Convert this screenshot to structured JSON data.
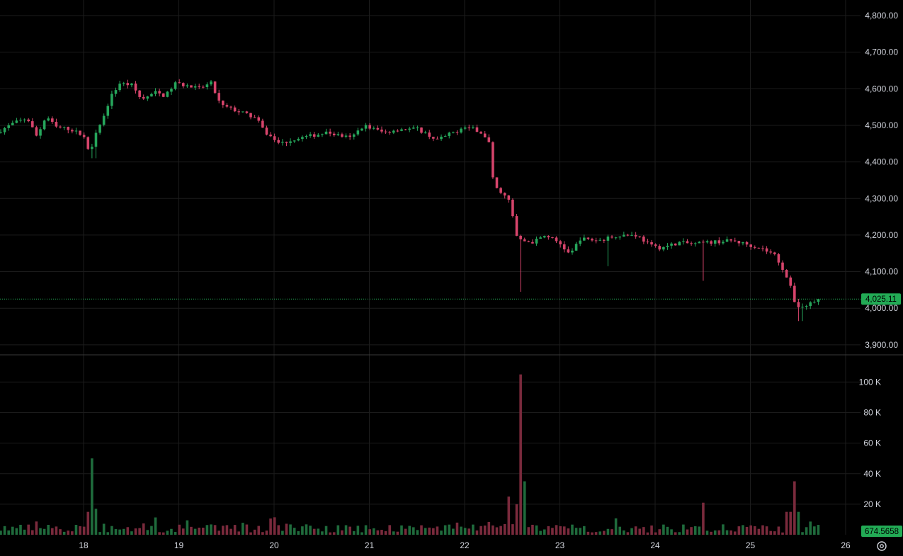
{
  "colors": {
    "background": "#000000",
    "grid": "#1c1c1c",
    "up": "#26a65b",
    "down": "#d6446b",
    "up_volume": "#1f6b3c",
    "down_volume": "#7a2a3c",
    "last_price_badge": "#22ab55",
    "axis_text": "#d1d4dc",
    "separator": "#3a3a3a"
  },
  "icons": {
    "settings": "gear-icon"
  },
  "chart_data": [
    {
      "type": "candlestick",
      "pane": "price",
      "x_ticks": [
        "18",
        "19",
        "20",
        "21",
        "22",
        "23",
        "24",
        "25",
        "26"
      ],
      "x_range": [
        17.13,
        26.73
      ],
      "ylim": [
        3880,
        4840
      ],
      "y_ticks": [
        "4,800.00",
        "4,700.00",
        "4,600.00",
        "4,500.00",
        "4,400.00",
        "4,300.00",
        "4,200.00",
        "4,100.00",
        "4,000.00",
        "3,900.00"
      ],
      "last_price": 4025.11,
      "last_price_label": "4,025.11",
      "keypoints": [
        [
          17.13,
          4480
        ],
        [
          17.3,
          4505
        ],
        [
          17.45,
          4520
        ],
        [
          17.55,
          4470
        ],
        [
          17.65,
          4525
        ],
        [
          17.75,
          4495
        ],
        [
          17.9,
          4490
        ],
        [
          18.05,
          4470
        ],
        [
          18.1,
          4420
        ],
        [
          18.18,
          4490
        ],
        [
          18.25,
          4520
        ],
        [
          18.32,
          4575
        ],
        [
          18.42,
          4615
        ],
        [
          18.55,
          4610
        ],
        [
          18.65,
          4570
        ],
        [
          18.8,
          4590
        ],
        [
          18.9,
          4580
        ],
        [
          19.0,
          4615
        ],
        [
          19.1,
          4610
        ],
        [
          19.25,
          4600
        ],
        [
          19.38,
          4615
        ],
        [
          19.48,
          4555
        ],
        [
          19.7,
          4535
        ],
        [
          19.85,
          4520
        ],
        [
          19.95,
          4480
        ],
        [
          20.1,
          4450
        ],
        [
          20.3,
          4465
        ],
        [
          20.6,
          4480
        ],
        [
          20.85,
          4465
        ],
        [
          20.98,
          4500
        ],
        [
          21.2,
          4480
        ],
        [
          21.35,
          4490
        ],
        [
          21.55,
          4490
        ],
        [
          21.75,
          4460
        ],
        [
          22.05,
          4495
        ],
        [
          22.2,
          4485
        ],
        [
          22.3,
          4450
        ],
        [
          22.35,
          4330
        ],
        [
          22.42,
          4320
        ],
        [
          22.52,
          4290
        ],
        [
          22.58,
          4200
        ],
        [
          22.63,
          4185
        ],
        [
          22.75,
          4180
        ],
        [
          22.9,
          4200
        ],
        [
          23.05,
          4175
        ],
        [
          23.15,
          4145
        ],
        [
          23.25,
          4190
        ],
        [
          23.45,
          4185
        ],
        [
          23.65,
          4200
        ],
        [
          23.85,
          4200
        ],
        [
          24.0,
          4170
        ],
        [
          24.1,
          4165
        ],
        [
          24.3,
          4180
        ],
        [
          24.45,
          4175
        ],
        [
          24.6,
          4180
        ],
        [
          24.85,
          4185
        ],
        [
          25.0,
          4175
        ],
        [
          25.15,
          4165
        ],
        [
          25.3,
          4145
        ],
        [
          25.4,
          4100
        ],
        [
          25.48,
          4045
        ],
        [
          25.52,
          4005
        ],
        [
          25.62,
          4005
        ],
        [
          25.73,
          4025.11
        ]
      ]
    },
    {
      "type": "bar",
      "pane": "volume",
      "y_ticks": [
        "100 K",
        "80 K",
        "60 K",
        "40 K",
        "20 K"
      ],
      "ylim": [
        0,
        107000
      ],
      "last_volume_label": "674.5658",
      "spikes": [
        {
          "x": 18.08,
          "volume": 50000,
          "direction": "up"
        },
        {
          "x": 18.03,
          "volume": 15000,
          "direction": "down"
        },
        {
          "x": 18.13,
          "volume": 17000,
          "direction": "up"
        },
        {
          "x": 22.45,
          "volume": 25000,
          "direction": "down"
        },
        {
          "x": 22.56,
          "volume": 20000,
          "direction": "down"
        },
        {
          "x": 22.58,
          "volume": 105000,
          "direction": "down"
        },
        {
          "x": 22.62,
          "volume": 35000,
          "direction": "up"
        },
        {
          "x": 24.5,
          "volume": 21000,
          "direction": "down"
        },
        {
          "x": 25.4,
          "volume": 15000,
          "direction": "down"
        },
        {
          "x": 25.48,
          "volume": 35000,
          "direction": "down"
        },
        {
          "x": 25.52,
          "volume": 15000,
          "direction": "up"
        }
      ]
    }
  ]
}
